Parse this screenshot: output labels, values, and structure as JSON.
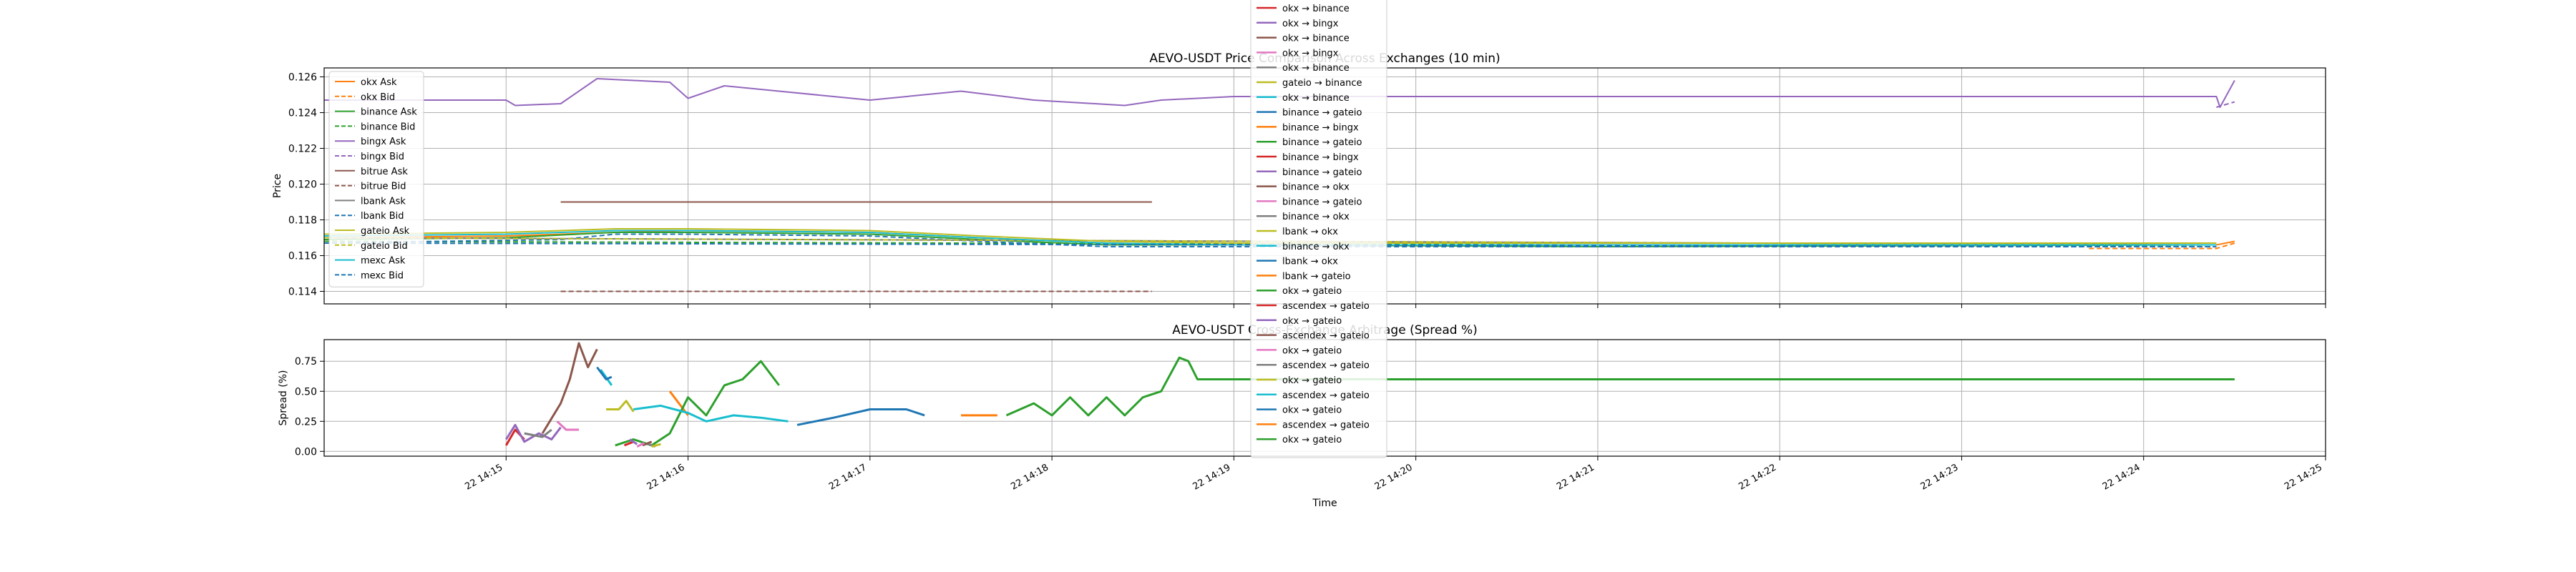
{
  "colors": {
    "okx": "#ff7f0e",
    "binance": "#2ca02c",
    "bingx": "#9467bd",
    "bitrue": "#8c564b",
    "lbank": "#1f77b4",
    "gateio": "#bcbd22",
    "mexc": "#17becf",
    "pink": "#e377c2",
    "gray": "#7f7f7f",
    "red": "#d62728",
    "grid": "#b0b0b0"
  },
  "chart_data": [
    {
      "type": "line",
      "title": "AEVO-USDT Price Comparison Across Exchanges (10 min)",
      "xlabel": "",
      "ylabel": "Price",
      "ylim": [
        0.1133,
        0.1265
      ],
      "xlim": [
        "14:14",
        "14:25"
      ],
      "grid": true,
      "legend_placement": "upper left",
      "y_ticks": [
        "0.114",
        "0.116",
        "0.118",
        "0.120",
        "0.122",
        "0.124",
        "0.126"
      ],
      "series": [
        {
          "name": "okx Ask",
          "color": "#ff7f0e",
          "dash": "solid",
          "x": [
            "14:14.0",
            "14:15.0",
            "14:15.6",
            "14:16.0",
            "14:17.0",
            "14:17.6",
            "14:18.3",
            "14:19.0",
            "14:21.0",
            "14:24.4",
            "14:24.5"
          ],
          "y": [
            0.117,
            0.1171,
            0.1173,
            0.1174,
            0.1173,
            0.117,
            0.1167,
            0.1166,
            0.1166,
            0.1166,
            0.1168
          ]
        },
        {
          "name": "okx Bid",
          "color": "#ff7f0e",
          "dash": "dashed",
          "x": [
            "14:23.7",
            "14:24.0",
            "14:24.4",
            "14:24.5"
          ],
          "y": [
            0.1164,
            0.1164,
            0.1164,
            0.1167
          ]
        },
        {
          "name": "binance Ask",
          "color": "#2ca02c",
          "dash": "solid",
          "x": [
            "14:14.0",
            "14:15.0",
            "14:15.6",
            "14:16.0",
            "14:17.0",
            "14:17.6",
            "14:18.3",
            "14:19.0",
            "14:21.0",
            "14:24.4"
          ],
          "y": [
            0.1169,
            0.117,
            0.1173,
            0.1173,
            0.1172,
            0.1169,
            0.1166,
            0.1166,
            0.1165,
            0.1166
          ]
        },
        {
          "name": "binance Bid",
          "color": "#2ca02c",
          "dash": "dashed",
          "x": [
            "14:14.0",
            "14:24.4"
          ],
          "y": [
            0.1168,
            0.1165
          ]
        },
        {
          "name": "bingx Ask",
          "color": "#9467bd",
          "dash": "solid",
          "x": [
            "14:14.0",
            "14:15.0",
            "14:15.05",
            "14:15.3",
            "14:15.5",
            "14:15.9",
            "14:16.0",
            "14:16.2",
            "14:17.0",
            "14:17.5",
            "14:17.9",
            "14:18.4",
            "14:18.6",
            "14:19.0",
            "14:21.0",
            "14:23.0",
            "14:24.4",
            "14:24.42",
            "14:24.5"
          ],
          "y": [
            0.1247,
            0.1247,
            0.1244,
            0.1245,
            0.1259,
            0.1257,
            0.1248,
            0.1255,
            0.1247,
            0.1252,
            0.1247,
            0.1244,
            0.1247,
            0.1249,
            0.1249,
            0.1249,
            0.1249,
            0.1243,
            0.1258
          ]
        },
        {
          "name": "bingx Bid",
          "color": "#9467bd",
          "dash": "dashed",
          "x": [
            "14:24.4",
            "14:24.5"
          ],
          "y": [
            0.1243,
            0.1246
          ]
        },
        {
          "name": "bitrue Ask",
          "color": "#8c564b",
          "dash": "solid",
          "x": [
            "14:15.3",
            "14:18.55"
          ],
          "y": [
            0.119,
            0.119
          ]
        },
        {
          "name": "bitrue Bid",
          "color": "#8c564b",
          "dash": "dashed",
          "x": [
            "14:15.3",
            "14:18.55"
          ],
          "y": [
            0.114,
            0.114
          ]
        },
        {
          "name": "lbank Ask",
          "color": "#7f7f7f",
          "dash": "solid",
          "x": [
            "14:14.0",
            "14:24.4"
          ],
          "y": [
            0.117,
            0.1166
          ]
        },
        {
          "name": "lbank Bid",
          "color": "#1f77b4",
          "dash": "dashed",
          "x": [
            "14:14.0",
            "14:15.3",
            "14:15.6",
            "14:16.0",
            "14:17.0",
            "14:17.6",
            "14:18.3",
            "14:19.0",
            "14:24.4"
          ],
          "y": [
            0.1167,
            0.1169,
            0.1172,
            0.1172,
            0.1171,
            0.1168,
            0.1165,
            0.1165,
            0.1165
          ]
        },
        {
          "name": "gateio Ask",
          "color": "#bcbd22",
          "dash": "solid",
          "x": [
            "14:14.0",
            "14:15.0",
            "14:15.6",
            "14:16.0",
            "14:17.0",
            "14:17.6",
            "14:18.3",
            "14:19.0",
            "14:24.4"
          ],
          "y": [
            0.1172,
            0.1173,
            0.1175,
            0.1175,
            0.1174,
            0.1171,
            0.1168,
            0.1167,
            0.1167
          ]
        },
        {
          "name": "gateio Bid",
          "color": "#bcbd22",
          "dash": "dashed",
          "x": [
            "14:14.0",
            "14:24.4"
          ],
          "y": [
            0.117,
            0.1166
          ]
        },
        {
          "name": "mexc Ask",
          "color": "#17becf",
          "dash": "solid",
          "x": [
            "14:14.0",
            "14:15.0",
            "14:15.6",
            "14:16.0",
            "14:17.0",
            "14:17.6",
            "14:18.3",
            "14:19.0",
            "14:24.4"
          ],
          "y": [
            0.1171,
            0.1172,
            0.1174,
            0.1174,
            0.1173,
            0.117,
            0.1167,
            0.1166,
            0.1166
          ]
        },
        {
          "name": "mexc Bid",
          "color": "#1f77b4",
          "dash": "dashed",
          "x": [
            "14:14.0",
            "14:24.4"
          ],
          "y": [
            0.1167,
            0.1165
          ]
        }
      ]
    },
    {
      "type": "line",
      "title": "AEVO-USDT Cross-Exchange Arbitrage (Spread %)",
      "xlabel": "Time",
      "ylabel": "Spread (%)",
      "ylim": [
        -0.04,
        0.93
      ],
      "xlim": [
        "14:14",
        "14:25"
      ],
      "grid": true,
      "y_ticks": [
        "0.00",
        "0.25",
        "0.50",
        "0.75"
      ],
      "x_ticks": [
        "22 14:15",
        "22 14:16",
        "22 14:17",
        "22 14:18",
        "22 14:19",
        "22 14:20",
        "22 14:21",
        "22 14:22",
        "22 14:23",
        "22 14:24",
        "22 14:25"
      ],
      "series": [
        {
          "name": "okx → binance",
          "color": "#d62728",
          "x": [
            "14:15.00",
            "14:15.05",
            "14:15.10"
          ],
          "y": [
            0.05,
            0.18,
            0.1
          ]
        },
        {
          "name": "okx → bingx",
          "color": "#9467bd",
          "x": [
            "14:15.00",
            "14:15.05",
            "14:15.10",
            "14:15.18",
            "14:15.25",
            "14:15.30"
          ],
          "y": [
            0.1,
            0.22,
            0.08,
            0.15,
            0.1,
            0.2
          ]
        },
        {
          "name": "okx → binance",
          "color": "#8c564b",
          "x": [
            "14:15.20",
            "14:15.30",
            "14:15.35",
            "14:15.40",
            "14:15.45",
            "14:15.50"
          ],
          "y": [
            0.15,
            0.4,
            0.6,
            0.9,
            0.7,
            0.85
          ]
        },
        {
          "name": "okx → bingx",
          "color": "#e377c2",
          "x": [
            "14:15.28",
            "14:15.33",
            "14:15.40"
          ],
          "y": [
            0.25,
            0.18,
            0.18
          ]
        },
        {
          "name": "okx → binance",
          "color": "#7f7f7f",
          "x": [
            "14:15.10",
            "14:15.20",
            "14:15.25"
          ],
          "y": [
            0.15,
            0.12,
            0.18
          ]
        },
        {
          "name": "gateio → binance",
          "color": "#bcbd22",
          "x": [
            "14:15.55",
            "14:15.62",
            "14:15.66",
            "14:15.70"
          ],
          "y": [
            0.35,
            0.35,
            0.42,
            0.33
          ]
        },
        {
          "name": "okx → binance",
          "color": "#17becf",
          "x": [
            "14:15.52",
            "14:15.58"
          ],
          "y": [
            0.68,
            0.55
          ]
        },
        {
          "name": "binance → gateio",
          "color": "#1f77b4",
          "x": [
            "14:15.50",
            "14:15.55",
            "14:15.58"
          ],
          "y": [
            0.7,
            0.6,
            0.62
          ]
        },
        {
          "name": "binance → bingx",
          "color": "#ff7f0e",
          "x": [
            "14:15.90",
            "14:16.00"
          ],
          "y": [
            0.5,
            0.3
          ]
        },
        {
          "name": "binance → gateio",
          "color": "#2ca02c",
          "x": [
            "14:15.60",
            "14:15.70",
            "14:15.80",
            "14:15.90",
            "14:16.00",
            "14:16.10",
            "14:16.20",
            "14:16.30",
            "14:16.40",
            "14:16.50"
          ],
          "y": [
            0.05,
            0.1,
            0.05,
            0.15,
            0.45,
            0.3,
            0.55,
            0.6,
            0.75,
            0.55
          ]
        },
        {
          "name": "binance → bingx",
          "color": "#d62728",
          "x": [
            "14:15.65",
            "14:15.70"
          ],
          "y": [
            0.05,
            0.08
          ]
        },
        {
          "name": "binance → gateio",
          "color": "#9467bd",
          "x": [
            "14:15.68",
            "14:15.72"
          ],
          "y": [
            0.1,
            0.06
          ]
        },
        {
          "name": "binance → okx",
          "color": "#8c564b",
          "x": [
            "14:15.75",
            "14:15.80"
          ],
          "y": [
            0.05,
            0.08
          ]
        },
        {
          "name": "binance → gateio",
          "color": "#e377c2",
          "x": [
            "14:15.72",
            "14:15.76"
          ],
          "y": [
            0.04,
            0.07
          ]
        },
        {
          "name": "binance → okx",
          "color": "#7f7f7f",
          "x": [
            "14:15.78",
            "14:15.82"
          ],
          "y": [
            0.06,
            0.04
          ]
        },
        {
          "name": "lbank → okx",
          "color": "#bcbd22",
          "x": [
            "14:15.80",
            "14:15.85"
          ],
          "y": [
            0.04,
            0.06
          ]
        },
        {
          "name": "binance → okx",
          "color": "#17becf",
          "x": [
            "14:15.70",
            "14:15.85",
            "14:16.00",
            "14:16.10",
            "14:16.25",
            "14:16.40",
            "14:16.55"
          ],
          "y": [
            0.35,
            0.38,
            0.32,
            0.25,
            0.3,
            0.28,
            0.25
          ]
        },
        {
          "name": "lbank → okx",
          "color": "#1f77b4",
          "x": [
            "14:16.60",
            "14:16.80",
            "14:17.00",
            "14:17.20",
            "14:17.30"
          ],
          "y": [
            0.22,
            0.28,
            0.35,
            0.35,
            0.3
          ]
        },
        {
          "name": "lbank → gateio",
          "color": "#ff7f0e",
          "x": [
            "14:17.50",
            "14:17.70"
          ],
          "y": [
            0.3,
            0.3
          ]
        },
        {
          "name": "okx → gateio",
          "color": "#2ca02c",
          "x": [
            "14:17.75",
            "14:17.90",
            "14:18.00",
            "14:18.10",
            "14:18.20",
            "14:18.30",
            "14:18.40",
            "14:18.50",
            "14:18.60",
            "14:18.70",
            "14:18.75",
            "14:18.80",
            "14:24.50"
          ],
          "y": [
            0.3,
            0.4,
            0.3,
            0.45,
            0.3,
            0.45,
            0.3,
            0.45,
            0.5,
            0.78,
            0.75,
            0.6,
            0.6
          ]
        },
        {
          "name": "ascendex → gateio",
          "color": "#d62728",
          "x": [],
          "y": []
        },
        {
          "name": "okx → gateio",
          "color": "#9467bd",
          "x": [],
          "y": []
        },
        {
          "name": "ascendex → gateio",
          "color": "#8c564b",
          "x": [],
          "y": []
        },
        {
          "name": "okx → gateio",
          "color": "#e377c2",
          "x": [],
          "y": []
        },
        {
          "name": "ascendex → gateio",
          "color": "#7f7f7f",
          "x": [],
          "y": []
        },
        {
          "name": "okx → gateio",
          "color": "#bcbd22",
          "x": [],
          "y": []
        },
        {
          "name": "ascendex → gateio",
          "color": "#17becf",
          "x": [],
          "y": []
        },
        {
          "name": "okx → gateio",
          "color": "#1f77b4",
          "x": [],
          "y": []
        },
        {
          "name": "ascendex → gateio",
          "color": "#ff7f0e",
          "x": [],
          "y": []
        },
        {
          "name": "okx → gateio",
          "color": "#2ca02c",
          "x": [],
          "y": []
        }
      ]
    }
  ]
}
